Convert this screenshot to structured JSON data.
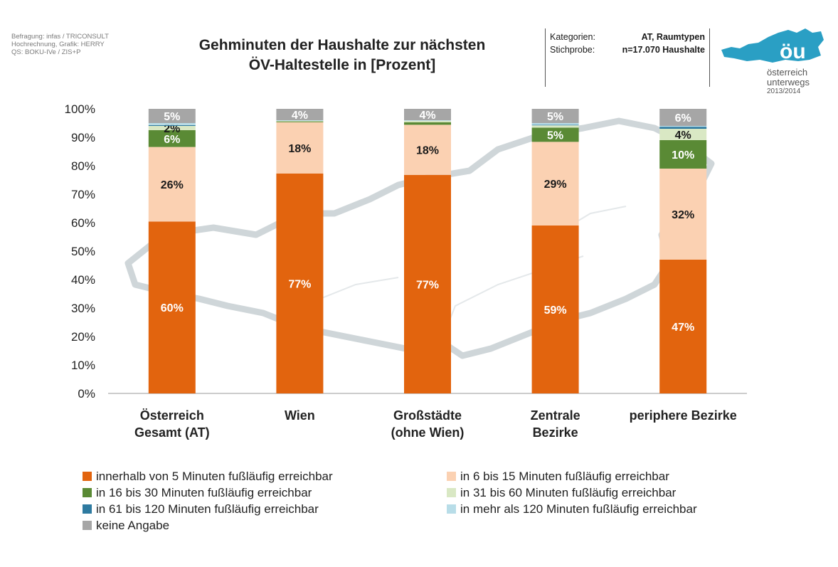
{
  "credits": [
    "Befragung: infas / TRICONSULT",
    "Hochrechnung, Grafik: HERRY",
    "QS: BOKU-IVe / ZIS+P"
  ],
  "title_lines": [
    "Gehminuten der Haushalte zur nächsten",
    "ÖV-Haltestelle in [Prozent]"
  ],
  "meta": {
    "kategorien_label": "Kategorien:",
    "kategorien_value": "AT, Raumtypen",
    "stichprobe_label": "Stichprobe:",
    "stichprobe_value": "n=17.070 Haushalte"
  },
  "logo": {
    "mark": "öu",
    "line1": "österreich",
    "line2": "unterwegs",
    "line3": "2013/2014"
  },
  "colors": {
    "map_outline": "#cfd6d9",
    "axis": "#999999",
    "brand": "#2a9fc4"
  },
  "chart_data": {
    "type": "bar",
    "stacked": true,
    "title": "Gehminuten der Haushalte zur nächsten ÖV-Haltestelle in [Prozent]",
    "ylim": [
      0,
      100
    ],
    "yticks": [
      "0%",
      "10%",
      "20%",
      "30%",
      "40%",
      "50%",
      "60%",
      "70%",
      "80%",
      "90%",
      "100%"
    ],
    "grid": false,
    "legend_position": "bottom",
    "categories": [
      [
        "Österreich",
        "Gesamt (AT)"
      ],
      [
        "Wien"
      ],
      [
        "Großstädte",
        "(ohne Wien)"
      ],
      [
        "Zentrale",
        "Bezirke"
      ],
      [
        "periphere Bezirke"
      ]
    ],
    "series": [
      {
        "name": "innerhalb von 5 Minuten fußläufig erreichbar",
        "color": "#e2640e",
        "label_color": "#ffffff",
        "values": [
          60.4,
          77.3,
          76.8,
          59.0,
          47.0
        ],
        "labels": [
          "60%",
          "77%",
          "77%",
          "59%",
          "47%"
        ]
      },
      {
        "name": "in 6 bis 15 Minuten fußläufig erreichbar",
        "color": "#fbd1b2",
        "label_color": "#1a1a1a",
        "values": [
          26.2,
          18.0,
          17.6,
          29.4,
          32.0
        ],
        "labels": [
          "26%",
          "18%",
          "18%",
          "29%",
          "32%"
        ]
      },
      {
        "name": "in 16 bis 30 Minuten fußläufig erreichbar",
        "color": "#5a8a35",
        "label_color": "#ffffff",
        "values": [
          5.9,
          0.3,
          0.9,
          5.0,
          10.0
        ],
        "labels": [
          "6%",
          "",
          "",
          "5%",
          "10%"
        ]
      },
      {
        "name": "in 31 bis 60 Minuten fußläufig erreichbar",
        "color": "#d9e8c4",
        "label_color": "#1a1a1a",
        "values": [
          1.5,
          0.2,
          0.5,
          0.8,
          4.0
        ],
        "labels": [
          "2%",
          "",
          "",
          "",
          "4%"
        ]
      },
      {
        "name": "in 61 bis 120 Minuten fußläufig erreichbar",
        "color": "#2e7aa0",
        "label_color": "#ffffff",
        "values": [
          0.3,
          0.0,
          0.0,
          0.2,
          0.7
        ],
        "labels": [
          "",
          "",
          "",
          "",
          ""
        ]
      },
      {
        "name": "in mehr als 120 Minuten fußläufig erreichbar",
        "color": "#b8dde8",
        "label_color": "#1a1a1a",
        "values": [
          0.7,
          0.2,
          0.2,
          0.6,
          0.3
        ],
        "labels": [
          "",
          "",
          "",
          "",
          ""
        ]
      },
      {
        "name": "keine Angabe",
        "color": "#a6a6a6",
        "label_color": "#ffffff",
        "values": [
          5.0,
          4.0,
          4.0,
          5.0,
          6.0
        ],
        "labels": [
          "5%",
          "4%",
          "4%",
          "5%",
          "6%"
        ]
      }
    ]
  }
}
